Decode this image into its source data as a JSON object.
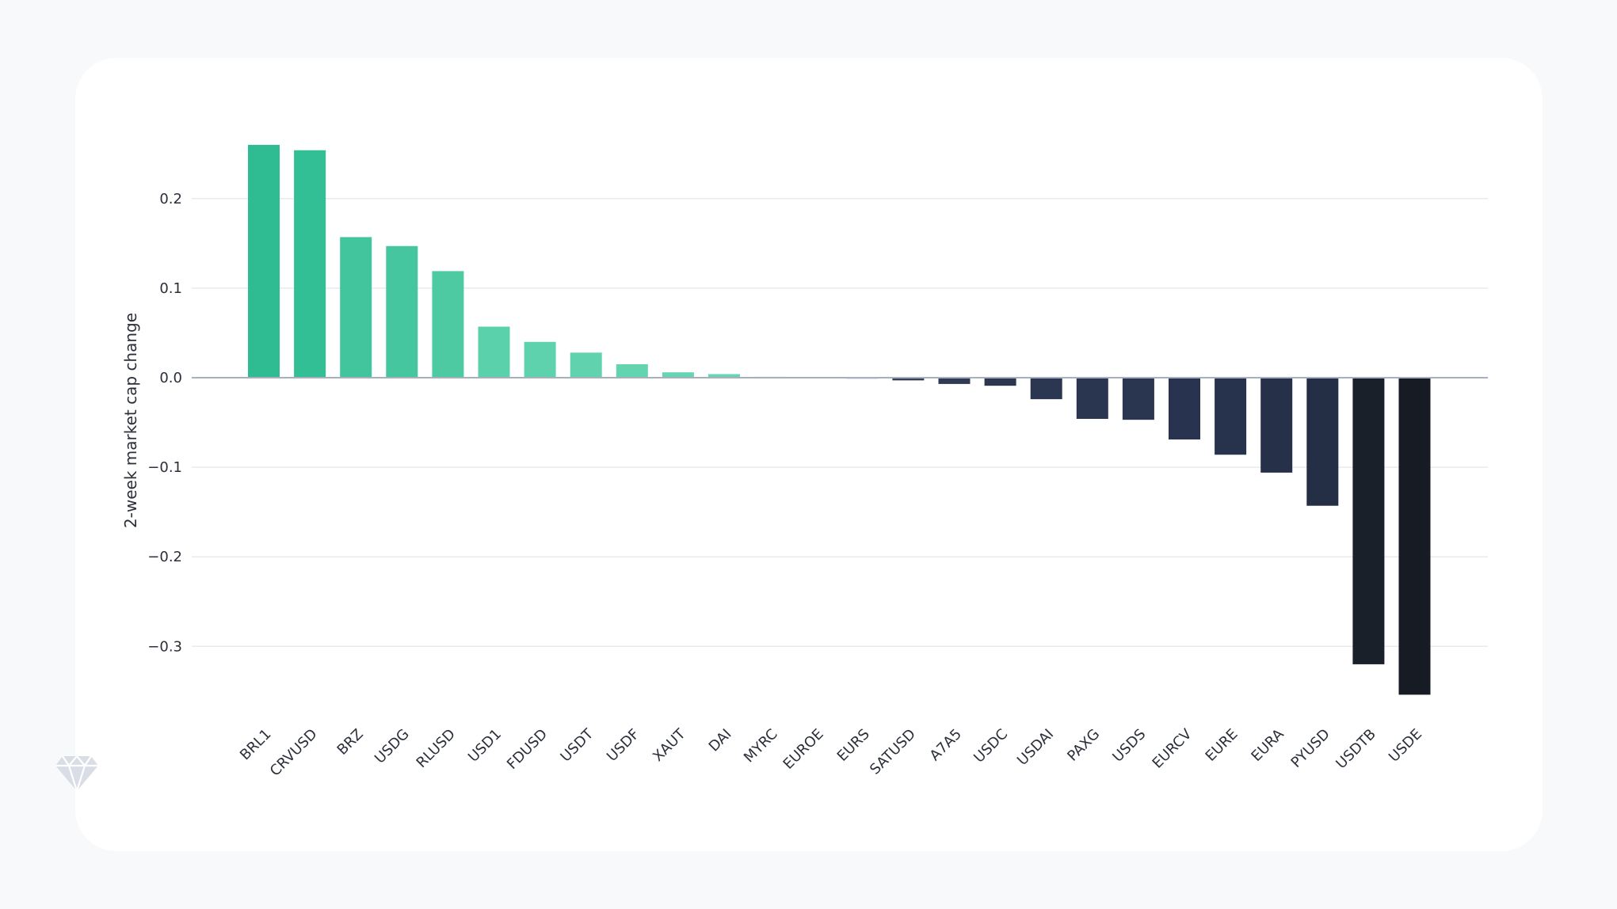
{
  "brand": {
    "logo_icon": "diamond-icon"
  },
  "chart_data": {
    "type": "bar",
    "title": "",
    "xlabel": "",
    "ylabel": "2-week market cap change",
    "ylim": [
      -0.39,
      0.285
    ],
    "yticks": [
      0.2,
      0.1,
      0.0,
      -0.1,
      -0.2,
      -0.3
    ],
    "ytick_labels": [
      "0.2",
      "0.1",
      "0.0",
      "−0.1",
      "−0.2",
      "−0.3"
    ],
    "grid": true,
    "legend": "none",
    "categories": [
      "BRL1",
      "CRVUSD",
      "BRZ",
      "USDG",
      "RLUSD",
      "USD1",
      "FDUSD",
      "USDT",
      "USDF",
      "XAUT",
      "DAI",
      "MYRC",
      "EUROE",
      "EURS",
      "SATUSD",
      "A7A5",
      "USDC",
      "USDAI",
      "PAXG",
      "USDS",
      "EURCV",
      "EURE",
      "EURA",
      "PYUSD",
      "USDTB",
      "USDE"
    ],
    "values": [
      0.26,
      0.254,
      0.157,
      0.147,
      0.119,
      0.057,
      0.04,
      0.028,
      0.015,
      0.006,
      0.004,
      0.001,
      0.0,
      -0.001,
      -0.003,
      -0.007,
      -0.009,
      -0.024,
      -0.046,
      -0.047,
      -0.069,
      -0.086,
      -0.106,
      -0.143,
      -0.32,
      -0.354
    ],
    "colors": [
      "#2fbc93",
      "#33bf95",
      "#42c59c",
      "#45c69e",
      "#4ecaa3",
      "#5ad0ab",
      "#5dd2ad",
      "#60d3ae",
      "#63d4b0",
      "#65d5b1",
      "#66d6b2",
      "#6ad8b4",
      "#6ad8b4",
      "#3b4559",
      "#353f54",
      "#303a50",
      "#2c374d",
      "#2b3650",
      "#2a3550",
      "#2a3550",
      "#283350",
      "#27324c",
      "#263149",
      "#242e44",
      "#1a202a",
      "#161b24"
    ]
  }
}
